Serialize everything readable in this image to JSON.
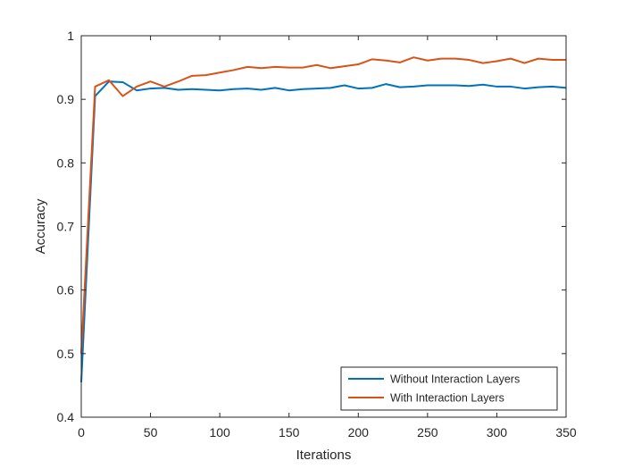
{
  "chart_data": {
    "type": "line",
    "xlabel": "Iterations",
    "ylabel": "Accuracy",
    "xlim": [
      0,
      350
    ],
    "ylim": [
      0.4,
      1
    ],
    "xticks": [
      0,
      50,
      100,
      150,
      200,
      250,
      300,
      350
    ],
    "xtick_labels": [
      "0",
      "50",
      "100",
      "150",
      "200",
      "250",
      "300",
      "350"
    ],
    "yticks": [
      0.4,
      0.5,
      0.6,
      0.7,
      0.8,
      0.9,
      1
    ],
    "ytick_labels": [
      "0.4",
      "0.5",
      "0.6",
      "0.7",
      "0.8",
      "0.9",
      "1"
    ],
    "grid": false,
    "legend_position": "bottom-right",
    "x": [
      0,
      10,
      20,
      30,
      40,
      50,
      60,
      70,
      80,
      90,
      100,
      110,
      120,
      130,
      140,
      150,
      160,
      170,
      180,
      190,
      200,
      210,
      220,
      230,
      240,
      250,
      260,
      270,
      280,
      290,
      300,
      310,
      320,
      330,
      340,
      350
    ],
    "series": [
      {
        "name": "Without Interaction Layers",
        "color": "#0072BD",
        "values": [
          0.455,
          0.905,
          0.928,
          0.927,
          0.914,
          0.917,
          0.918,
          0.915,
          0.916,
          0.915,
          0.914,
          0.916,
          0.917,
          0.915,
          0.918,
          0.914,
          0.916,
          0.917,
          0.918,
          0.922,
          0.917,
          0.918,
          0.924,
          0.919,
          0.92,
          0.922,
          0.922,
          0.922,
          0.921,
          0.923,
          0.92,
          0.92,
          0.917,
          0.919,
          0.92,
          0.918
        ]
      },
      {
        "name": "With Interaction Layers",
        "color": "#D95319",
        "values": [
          0.5,
          0.92,
          0.93,
          0.905,
          0.92,
          0.928,
          0.92,
          0.928,
          0.937,
          0.938,
          0.942,
          0.946,
          0.951,
          0.949,
          0.951,
          0.95,
          0.95,
          0.954,
          0.949,
          0.952,
          0.955,
          0.963,
          0.961,
          0.958,
          0.966,
          0.961,
          0.964,
          0.964,
          0.962,
          0.957,
          0.96,
          0.964,
          0.957,
          0.964,
          0.962,
          0.962
        ]
      }
    ]
  }
}
